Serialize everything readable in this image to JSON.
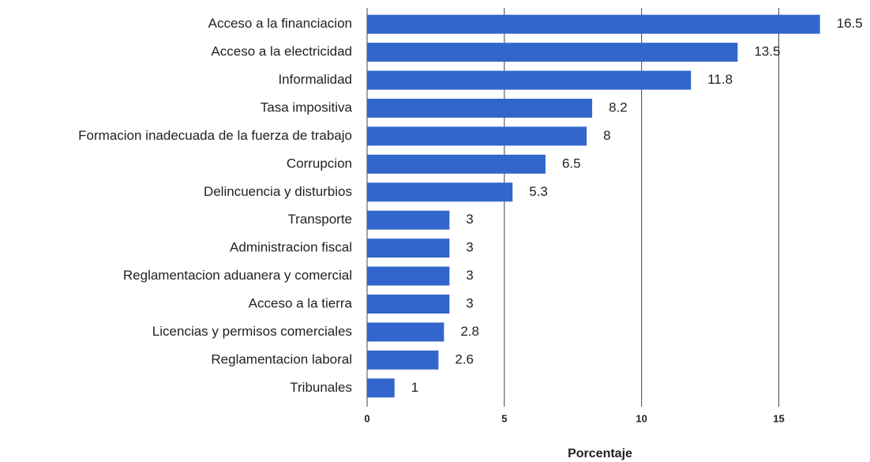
{
  "chart_data": {
    "type": "bar",
    "orientation": "horizontal",
    "x_label": "Porcentaje",
    "categories": [
      "Acceso a la financiacion",
      "Acceso a la electricidad",
      "Informalidad",
      "Tasa impositiva",
      "Formacion inadecuada de la fuerza de trabajo",
      "Corrupcion",
      "Delincuencia y disturbios",
      "Transporte",
      "Administracion fiscal",
      "Reglamentacion aduanera y comercial",
      "Acceso a la tierra",
      "Licencias y permisos comerciales",
      "Reglamentacion laboral",
      "Tribunales"
    ],
    "values": [
      16.5,
      13.5,
      11.8,
      8.2,
      8,
      6.5,
      5.3,
      3,
      3,
      3,
      3,
      2.8,
      2.6,
      1
    ],
    "color": "#3366cc",
    "xlim": [
      0,
      17
    ],
    "xticks": [
      0,
      5,
      10,
      15
    ],
    "grid": true
  }
}
